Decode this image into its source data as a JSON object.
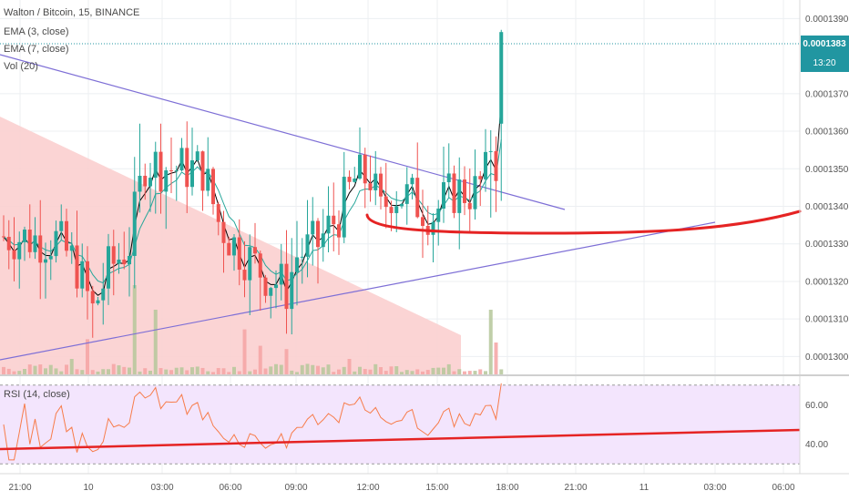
{
  "legend": {
    "symbol_line": "Walton / Bitcoin, 15, BINANCE",
    "ema3": "EMA (3, close)",
    "ema7": "EMA (7, close)",
    "vol": "Vol (20)",
    "rsi": "RSI (14, close)"
  },
  "price_badge": {
    "value": "0.0001383",
    "countdown": "13:20"
  },
  "colors": {
    "up": "#26a69a",
    "down": "#ef5350",
    "ema3": "#000000",
    "ema7": "#26a69a",
    "trendline": "#7e6fd6",
    "drawing": "#e52323",
    "rsi_line": "#f77c4a",
    "rsi_band": "#f3e5fd",
    "triangle": "#fbcfcf",
    "badge": "#2196a1"
  },
  "chart_data": [
    {
      "type": "candlestick",
      "title": "Walton / Bitcoin, 15, BINANCE",
      "ylim": [
        0.0001295,
        0.0001393
      ],
      "y_ticks": [
        "0.0001300",
        "0.0001310",
        "0.0001320",
        "0.0001330",
        "0.0001340",
        "0.0001350",
        "0.0001360",
        "0.0001370",
        "0.0001390"
      ],
      "x_ticks": [
        "21:00",
        "10",
        "03:00",
        "06:00",
        "09:00",
        "12:00",
        "15:00",
        "18:00",
        "21:00",
        "11",
        "03:00",
        "06:00"
      ],
      "last_price": 0.0001383,
      "series": [
        {
          "name": "EMA (3, close)"
        },
        {
          "name": "EMA (7, close)"
        },
        {
          "name": "Vol (20)"
        }
      ],
      "grid": true
    },
    {
      "type": "line",
      "title": "RSI (14, close)",
      "ylim": [
        25,
        75
      ],
      "y_ticks": [
        "40.00",
        "60.00"
      ],
      "bands": [
        30,
        70
      ],
      "grid": true
    }
  ]
}
